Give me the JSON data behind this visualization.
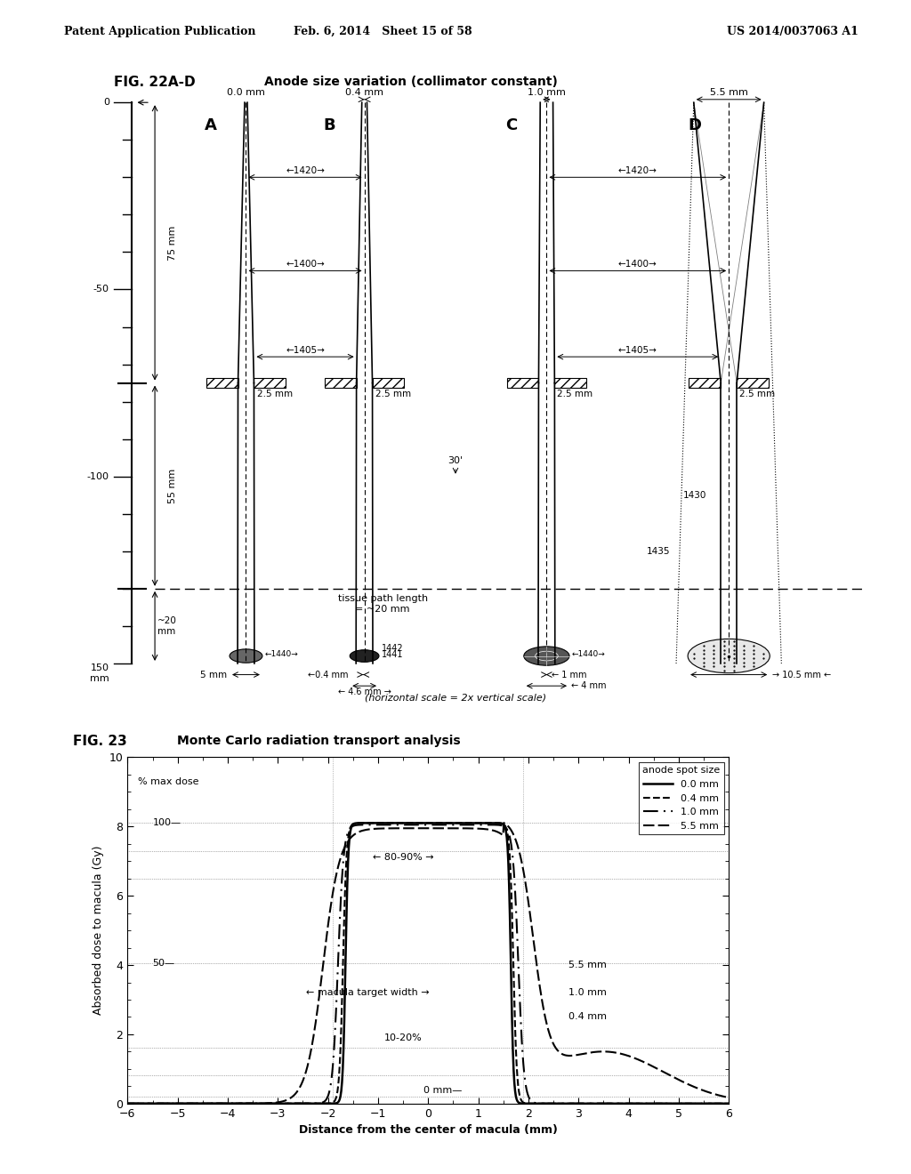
{
  "header_left": "Patent Application Publication",
  "header_center": "Feb. 6, 2014   Sheet 15 of 58",
  "header_right": "US 2014/0037063 A1",
  "fig22_label": "FIG. 22A-D",
  "fig22_title": "Anode size variation (collimator constant)",
  "fig23_label": "FIG. 23",
  "fig23_title": "Monte Carlo radiation transport analysis",
  "background_color": "#ffffff",
  "text_color": "#1a1a1a",
  "anode_sizes": [
    "0.0 mm",
    "0.4 mm",
    "1.0 mm",
    "5.5 mm"
  ],
  "panel_labels": [
    "A",
    "B",
    "C",
    "D"
  ],
  "collimator_label": "2.5 mm",
  "tissue_label": "tissue path length\n= ~20 mm",
  "angle_label": "30'",
  "horiz_scale_note": "(horizontal scale = 2x vertical scale)",
  "fig23_ylabel": "Absorbed dose to macula (Gy)",
  "fig23_xlabel": "Distance from the center of macula (mm)",
  "fig23_ylim": [
    0,
    10
  ],
  "fig23_xlim": [
    -6,
    6
  ],
  "fig23_yticks": [
    0,
    2,
    4,
    6,
    8,
    10
  ],
  "fig23_xticks": [
    -6,
    -5,
    -4,
    -3,
    -2,
    -1,
    0,
    1,
    2,
    3,
    4,
    5,
    6
  ],
  "fig23_legend": [
    "0.0 mm",
    "0.4 mm",
    "1.0 mm",
    "5.5 mm"
  ],
  "fig23_legend_title": "anode spot size",
  "pct_max_dose": "% max dose",
  "pct_100": "100",
  "pct_80_90": "← 80-90% →",
  "pct_50": "50",
  "macula_target": "← macula target width →",
  "pct_10_20": "10-20%",
  "pct_0mm": "0 mm",
  "label_55mm": "5.5 mm",
  "label_10mm": "1.0 mm",
  "label_04mm": "0.4 mm"
}
